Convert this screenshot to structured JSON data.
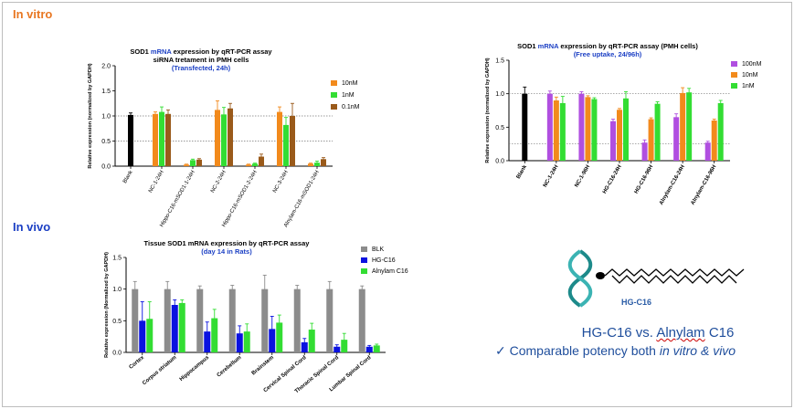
{
  "sections": {
    "in_vitro": "In vitro",
    "in_vivo": "In vivo"
  },
  "colors": {
    "section": "#e87722",
    "section_vivo": "#1b3fc4",
    "mrna": "#1b3fc4",
    "caption": "#1f4e9c"
  },
  "molecule": {
    "label": "HG-C16"
  },
  "caption": {
    "title_prefix": "HG-C16 vs. ",
    "title_underlined": "Alnylam",
    "title_suffix": " C16",
    "check": "✓",
    "point_prefix": "Comparable potency both ",
    "point_emph": "in vitro & vivo"
  },
  "chart_data": [
    {
      "type": "bar",
      "title_prefix": "SOD1 ",
      "title_mrna": "mRNA",
      "title_suffix": " expression by qRT-PCR assay",
      "subtitle": "siRNA tretament in PMH cells",
      "subtitle2": "(Transfected, 24h)",
      "ylabel": "Relative expression (normalized by GAPDH)",
      "ylim": [
        0,
        2.0
      ],
      "yticks": [
        "0.0",
        "0.5",
        "1.0",
        "1.5",
        "2.0"
      ],
      "ytick_values": [
        0,
        0.5,
        1.0,
        1.5,
        2.0
      ],
      "reference_lines": [
        1.0,
        0.5
      ],
      "categories": [
        "Blank",
        "NC-1-24H",
        "Hippo-C16-mSOD1-1-24H",
        "NC-2-24H",
        "Hippo-C16-mSOD1-2-24H",
        "NC-3-24H",
        "Alnylam-C16-mSOD1-24H"
      ],
      "blank": {
        "value": 1.02,
        "err": 0.04,
        "color": "#000000"
      },
      "series": [
        {
          "name": "10nM",
          "color": "#f28a1c",
          "values": [
            null,
            1.04,
            0.03,
            1.12,
            0.03,
            1.08,
            0.05
          ],
          "err": [
            null,
            0.04,
            0.01,
            0.18,
            0.01,
            0.1,
            0.01
          ]
        },
        {
          "name": "1nM",
          "color": "#33dd33",
          "values": [
            null,
            1.08,
            0.12,
            1.03,
            0.05,
            0.82,
            0.07
          ],
          "err": [
            null,
            0.1,
            0.02,
            0.14,
            0.01,
            0.15,
            0.03
          ]
        },
        {
          "name": "0.1nM",
          "color": "#9a5a1a",
          "values": [
            null,
            1.04,
            0.13,
            1.15,
            0.19,
            1.0,
            0.14
          ],
          "err": [
            null,
            0.08,
            0.02,
            0.1,
            0.05,
            0.25,
            0.03
          ]
        }
      ]
    },
    {
      "type": "bar",
      "title_prefix": "SOD1 ",
      "title_mrna": "mRNA",
      "title_suffix": " expression by qRT-PCR assay (PMH cells)",
      "subtitle2": "(Free uptake, 24/96h)",
      "ylabel": "Relative expression (normalized by GAPDH)",
      "ylim": [
        0,
        1.5
      ],
      "yticks": [
        "0.0",
        "0.5",
        "1.0",
        "1.5"
      ],
      "ytick_values": [
        0,
        0.5,
        1.0,
        1.5
      ],
      "reference_lines": [
        1.0,
        0.25
      ],
      "categories": [
        "Blank",
        "NC-1-24H",
        "NC-1-96H",
        "HG-C16-24H",
        "HG-C16-96H",
        "Alnylam-C16-24H",
        "Alnylam-C16-96H"
      ],
      "blank": {
        "value": 1.0,
        "err": 0.1,
        "color": "#000000"
      },
      "series": [
        {
          "name": "100nM",
          "color": "#b04fe0",
          "values": [
            null,
            1.0,
            1.0,
            0.59,
            0.27,
            0.65,
            0.27
          ],
          "err": [
            null,
            0.04,
            0.03,
            0.03,
            0.04,
            0.05,
            0.02
          ]
        },
        {
          "name": "10nM",
          "color": "#f28a1c",
          "values": [
            null,
            0.9,
            0.95,
            0.76,
            0.62,
            1.01,
            0.6
          ],
          "err": [
            null,
            0.05,
            0.02,
            0.02,
            0.02,
            0.08,
            0.02
          ]
        },
        {
          "name": "1nM",
          "color": "#33dd33",
          "values": [
            null,
            0.86,
            0.92,
            0.93,
            0.85,
            1.02,
            0.86
          ],
          "err": [
            null,
            0.1,
            0.02,
            0.1,
            0.03,
            0.06,
            0.04
          ]
        }
      ]
    },
    {
      "type": "bar",
      "title": "Tissue SOD1 mRNA expression by qRT-PCR assay",
      "subtitle2": "(day 14 in Rats)",
      "ylabel": "Relative expression (Normalized by GAPDH)",
      "ylim": [
        0,
        1.5
      ],
      "yticks": [
        "0.0",
        "0.5",
        "1.0",
        "1.5"
      ],
      "ytick_values": [
        0,
        0.5,
        1.0,
        1.5
      ],
      "categories": [
        "Cortex",
        "Corpus striatum",
        "Hippocampus",
        "Cerebellum",
        "Brainstem",
        "Cervical Spinal Cord",
        "Thoracic Spinal Cord",
        "Lumbar Spinal Cord"
      ],
      "series": [
        {
          "name": "BLK",
          "color": "#8c8c8c",
          "values": [
            1.0,
            1.0,
            1.0,
            1.0,
            1.0,
            1.0,
            1.0,
            1.0
          ],
          "err": [
            0.12,
            0.12,
            0.05,
            0.06,
            0.22,
            0.06,
            0.12,
            0.05
          ]
        },
        {
          "name": "HG-C16",
          "color": "#0a12e0",
          "values": [
            0.5,
            0.75,
            0.33,
            0.3,
            0.37,
            0.16,
            0.09,
            0.09
          ],
          "err": [
            0.3,
            0.08,
            0.15,
            0.12,
            0.2,
            0.06,
            0.03,
            0.02
          ]
        },
        {
          "name": "Alnylam C16",
          "color": "#33dd33",
          "values": [
            0.53,
            0.78,
            0.54,
            0.33,
            0.47,
            0.36,
            0.2,
            0.11
          ],
          "err": [
            0.27,
            0.05,
            0.14,
            0.12,
            0.12,
            0.1,
            0.1,
            0.02
          ]
        }
      ]
    }
  ]
}
